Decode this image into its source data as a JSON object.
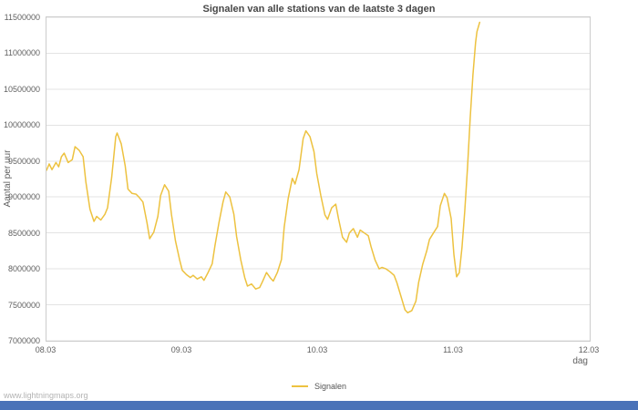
{
  "page": {
    "watermark": "www.lightningmaps.org",
    "footer_bar_color": "#4a72b8",
    "background": "#ffffff"
  },
  "chart_data": {
    "type": "line",
    "title": "Signalen van alle stations van de laatste 3 dagen",
    "xlabel": "dag",
    "ylabel": "Aantal per uur",
    "xlim": [
      8,
      12
    ],
    "ylim": [
      7000000,
      11500000
    ],
    "ytick_step": 500000,
    "xticks": [
      {
        "value": 8,
        "label": "08.03"
      },
      {
        "value": 9,
        "label": "09.03"
      },
      {
        "value": 10,
        "label": "10.03"
      },
      {
        "value": 11,
        "label": "11.03"
      },
      {
        "value": 12,
        "label": "12.03"
      }
    ],
    "grid": "horizontal-only",
    "legend_position": "bottom-center",
    "series": [
      {
        "name": "Signalen",
        "color": "#edc240",
        "points": [
          [
            8.0,
            9370000
          ],
          [
            8.02,
            9460000
          ],
          [
            8.04,
            9380000
          ],
          [
            8.07,
            9480000
          ],
          [
            8.09,
            9420000
          ],
          [
            8.11,
            9560000
          ],
          [
            8.13,
            9610000
          ],
          [
            8.16,
            9480000
          ],
          [
            8.19,
            9520000
          ],
          [
            8.21,
            9700000
          ],
          [
            8.24,
            9650000
          ],
          [
            8.27,
            9560000
          ],
          [
            8.29,
            9210000
          ],
          [
            8.32,
            8830000
          ],
          [
            8.35,
            8660000
          ],
          [
            8.37,
            8730000
          ],
          [
            8.4,
            8680000
          ],
          [
            8.43,
            8760000
          ],
          [
            8.45,
            8850000
          ],
          [
            8.48,
            9270000
          ],
          [
            8.51,
            9840000
          ],
          [
            8.52,
            9890000
          ],
          [
            8.55,
            9740000
          ],
          [
            8.58,
            9430000
          ],
          [
            8.6,
            9110000
          ],
          [
            8.63,
            9050000
          ],
          [
            8.66,
            9040000
          ],
          [
            8.68,
            9000000
          ],
          [
            8.71,
            8930000
          ],
          [
            8.74,
            8640000
          ],
          [
            8.76,
            8420000
          ],
          [
            8.79,
            8510000
          ],
          [
            8.82,
            8730000
          ],
          [
            8.84,
            9020000
          ],
          [
            8.87,
            9170000
          ],
          [
            8.9,
            9080000
          ],
          [
            8.92,
            8760000
          ],
          [
            8.95,
            8390000
          ],
          [
            8.98,
            8130000
          ],
          [
            9.0,
            7980000
          ],
          [
            9.03,
            7920000
          ],
          [
            9.06,
            7880000
          ],
          [
            9.08,
            7910000
          ],
          [
            9.11,
            7860000
          ],
          [
            9.14,
            7890000
          ],
          [
            9.16,
            7840000
          ],
          [
            9.19,
            7950000
          ],
          [
            9.22,
            8070000
          ],
          [
            9.24,
            8320000
          ],
          [
            9.27,
            8640000
          ],
          [
            9.3,
            8930000
          ],
          [
            9.32,
            9070000
          ],
          [
            9.35,
            9000000
          ],
          [
            9.38,
            8760000
          ],
          [
            9.4,
            8450000
          ],
          [
            9.43,
            8130000
          ],
          [
            9.46,
            7880000
          ],
          [
            9.48,
            7760000
          ],
          [
            9.51,
            7790000
          ],
          [
            9.54,
            7720000
          ],
          [
            9.57,
            7740000
          ],
          [
            9.59,
            7820000
          ],
          [
            9.62,
            7950000
          ],
          [
            9.65,
            7870000
          ],
          [
            9.67,
            7830000
          ],
          [
            9.7,
            7950000
          ],
          [
            9.73,
            8130000
          ],
          [
            9.75,
            8580000
          ],
          [
            9.78,
            8980000
          ],
          [
            9.81,
            9260000
          ],
          [
            9.83,
            9180000
          ],
          [
            9.86,
            9380000
          ],
          [
            9.89,
            9810000
          ],
          [
            9.91,
            9920000
          ],
          [
            9.94,
            9840000
          ],
          [
            9.97,
            9630000
          ],
          [
            9.99,
            9330000
          ],
          [
            10.02,
            9020000
          ],
          [
            10.05,
            8750000
          ],
          [
            10.07,
            8690000
          ],
          [
            10.1,
            8850000
          ],
          [
            10.13,
            8900000
          ],
          [
            10.15,
            8700000
          ],
          [
            10.18,
            8440000
          ],
          [
            10.21,
            8370000
          ],
          [
            10.23,
            8500000
          ],
          [
            10.26,
            8560000
          ],
          [
            10.29,
            8440000
          ],
          [
            10.31,
            8540000
          ],
          [
            10.34,
            8500000
          ],
          [
            10.37,
            8460000
          ],
          [
            10.39,
            8310000
          ],
          [
            10.42,
            8120000
          ],
          [
            10.45,
            8000000
          ],
          [
            10.47,
            8020000
          ],
          [
            10.5,
            8000000
          ],
          [
            10.53,
            7960000
          ],
          [
            10.56,
            7910000
          ],
          [
            10.58,
            7810000
          ],
          [
            10.61,
            7620000
          ],
          [
            10.64,
            7430000
          ],
          [
            10.66,
            7390000
          ],
          [
            10.69,
            7420000
          ],
          [
            10.72,
            7550000
          ],
          [
            10.74,
            7810000
          ],
          [
            10.77,
            8060000
          ],
          [
            10.8,
            8250000
          ],
          [
            10.82,
            8410000
          ],
          [
            10.85,
            8500000
          ],
          [
            10.88,
            8590000
          ],
          [
            10.9,
            8880000
          ],
          [
            10.93,
            9050000
          ],
          [
            10.95,
            8990000
          ],
          [
            10.98,
            8700000
          ],
          [
            11.0,
            8200000
          ],
          [
            11.02,
            7890000
          ],
          [
            11.04,
            7950000
          ],
          [
            11.06,
            8300000
          ],
          [
            11.08,
            8800000
          ],
          [
            11.1,
            9400000
          ],
          [
            11.12,
            10100000
          ],
          [
            11.14,
            10700000
          ],
          [
            11.16,
            11150000
          ],
          [
            11.17,
            11300000
          ],
          [
            11.19,
            11430000
          ]
        ]
      }
    ]
  }
}
